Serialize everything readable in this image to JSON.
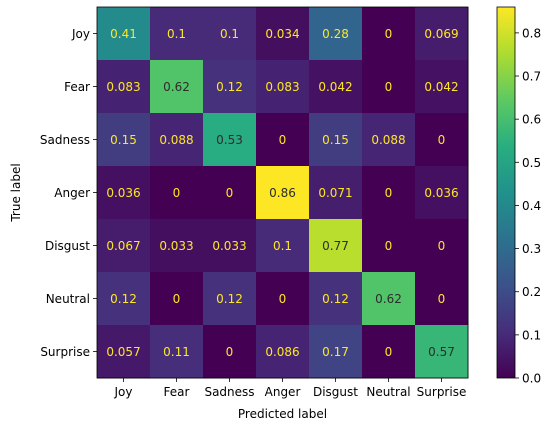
{
  "chart_data": {
    "type": "heatmap",
    "title": "",
    "xlabel": "Predicted label",
    "ylabel": "True label",
    "x_categories": [
      "Joy",
      "Fear",
      "Sadness",
      "Anger",
      "Disgust",
      "Neutral",
      "Surprise"
    ],
    "y_categories": [
      "Joy",
      "Fear",
      "Sadness",
      "Anger",
      "Disgust",
      "Neutral",
      "Surprise"
    ],
    "values": [
      [
        0.41,
        0.1,
        0.1,
        0.034,
        0.28,
        0,
        0.069
      ],
      [
        0.083,
        0.62,
        0.12,
        0.083,
        0.042,
        0,
        0.042
      ],
      [
        0.15,
        0.088,
        0.53,
        0,
        0.15,
        0.088,
        0
      ],
      [
        0.036,
        0,
        0,
        0.86,
        0.071,
        0,
        0.036
      ],
      [
        0.067,
        0.033,
        0.033,
        0.1,
        0.77,
        0,
        0
      ],
      [
        0.12,
        0,
        0.12,
        0,
        0.12,
        0.62,
        0
      ],
      [
        0.057,
        0.11,
        0,
        0.086,
        0.17,
        0,
        0.57
      ]
    ],
    "value_labels": [
      [
        "0.41",
        "0.1",
        "0.1",
        "0.034",
        "0.28",
        "0",
        "0.069"
      ],
      [
        "0.083",
        "0.62",
        "0.12",
        "0.083",
        "0.042",
        "0",
        "0.042"
      ],
      [
        "0.15",
        "0.088",
        "0.53",
        "0",
        "0.15",
        "0.088",
        "0"
      ],
      [
        "0.036",
        "0",
        "0",
        "0.86",
        "0.071",
        "0",
        "0.036"
      ],
      [
        "0.067",
        "0.033",
        "0.033",
        "0.1",
        "0.77",
        "0",
        "0"
      ],
      [
        "0.12",
        "0",
        "0.12",
        "0",
        "0.12",
        "0.62",
        "0"
      ],
      [
        "0.057",
        "0.11",
        "0",
        "0.086",
        "0.17",
        "0",
        "0.57"
      ]
    ],
    "colormap": "viridis",
    "colorbar": {
      "vmin": 0,
      "vmax": 0.86,
      "ticks": [
        0.0,
        0.1,
        0.2,
        0.3,
        0.4,
        0.5,
        0.6,
        0.7,
        0.8
      ],
      "tick_labels": [
        "0.0",
        "0.1",
        "0.2",
        "0.3",
        "0.4",
        "0.5",
        "0.6",
        "0.7",
        "0.8"
      ]
    },
    "text_colors": {
      "light": "#fde725",
      "dark": "#2d2d2d"
    },
    "grid": false,
    "legend": "colorbar-right"
  }
}
